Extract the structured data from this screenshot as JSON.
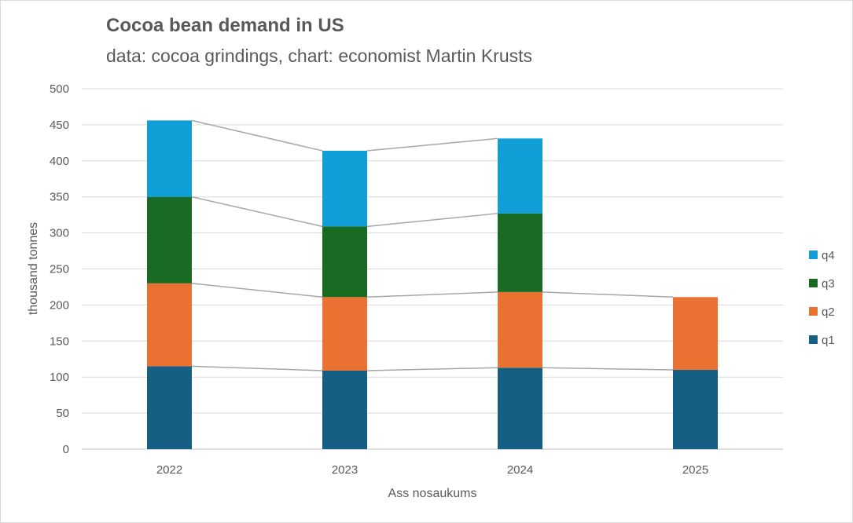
{
  "chart_data": {
    "type": "bar",
    "stacked": true,
    "title": "Cocoa bean demand in US",
    "subtitle": "data: cocoa grindings, chart: economist Martin Krusts",
    "xlabel": "Ass nosaukums",
    "ylabel": "thousand tonnes",
    "categories": [
      "2022",
      "2023",
      "2024",
      "2025"
    ],
    "ylim": [
      0,
      500
    ],
    "yticks": [
      "0",
      "50",
      "100",
      "150",
      "200",
      "250",
      "300",
      "350",
      "400",
      "450",
      "500"
    ],
    "grid": true,
    "legend": "right",
    "series_lines": true,
    "series": [
      {
        "name": "q1",
        "color": "#156082",
        "values": [
          115,
          109,
          113,
          110
        ]
      },
      {
        "name": "q2",
        "color": "#e97132",
        "values": [
          115,
          102,
          105,
          101
        ]
      },
      {
        "name": "q3",
        "color": "#196b24",
        "values": [
          120,
          98,
          109,
          null
        ]
      },
      {
        "name": "q4",
        "color": "#0f9ed5",
        "values": [
          106,
          105,
          104,
          null
        ]
      }
    ]
  }
}
